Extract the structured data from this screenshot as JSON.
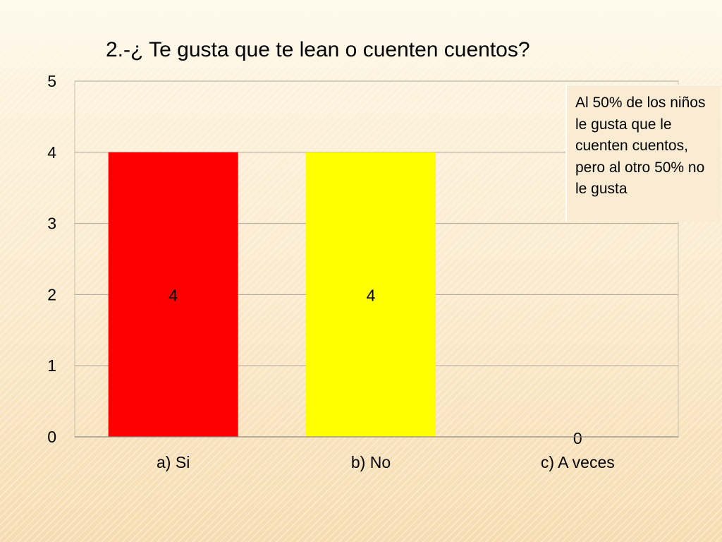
{
  "slide": {
    "title": "2.-¿ Te gusta que te lean o cuenten cuentos?",
    "note": "Al 50% de los niños le gusta que le cuenten cuentos, pero  al otro  50% no le gusta"
  },
  "chart_data": {
    "type": "bar",
    "title": "2.-¿ Te gusta que te lean o cuenten cuentos?",
    "categories": [
      "a) Si",
      "b) No",
      "c) A veces"
    ],
    "values": [
      4,
      4,
      0
    ],
    "data_labels": [
      "4",
      "4",
      "0"
    ],
    "colors": [
      "#ff0000",
      "#ffff00",
      "#ffff00"
    ],
    "ylim": [
      0,
      5
    ],
    "yticks": [
      "0",
      "1",
      "2",
      "3",
      "4",
      "5"
    ],
    "xlabel": "",
    "ylabel": "",
    "grid": true,
    "legend": "none"
  }
}
